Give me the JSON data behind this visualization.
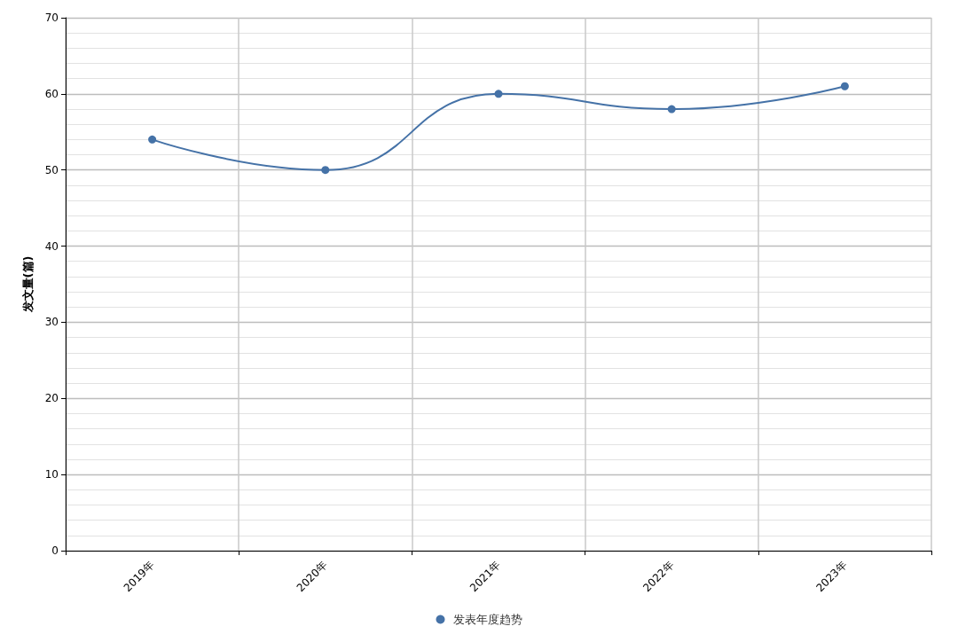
{
  "chart_data": {
    "type": "line",
    "ylabel": "发文量(篇)",
    "categories": [
      "2019年",
      "2020年",
      "2021年",
      "2022年",
      "2023年"
    ],
    "series": [
      {
        "name": "发表年度趋势",
        "color": "#4572a7",
        "values": [
          54,
          50,
          60,
          58,
          61
        ]
      }
    ],
    "ylim": [
      0,
      70
    ],
    "yticks": [
      0,
      10,
      20,
      30,
      40,
      50,
      60,
      70
    ],
    "grid": true,
    "legend": "bottom",
    "marker": "circle",
    "line_style": "solid"
  }
}
